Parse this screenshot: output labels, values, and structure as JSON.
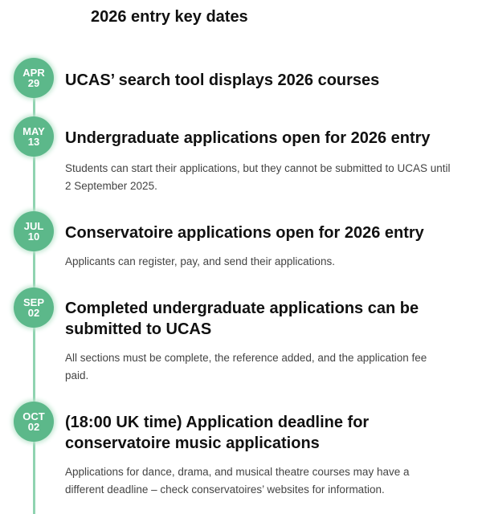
{
  "heading": "2026 entry key dates",
  "accent": "#5cb88a",
  "items": [
    {
      "month": "APR",
      "day": "29",
      "title": "UCAS’ search tool displays 2026 courses",
      "desc": ""
    },
    {
      "month": "MAY",
      "day": "13",
      "title": "Undergraduate applications open for 2026 entry",
      "desc": "Students can start their applications, but they cannot be submitted to UCAS until 2 September 2025."
    },
    {
      "month": "JUL",
      "day": "10",
      "title": "Conservatoire applications open for 2026 entry",
      "desc": "Applicants can register, pay, and send their applications."
    },
    {
      "month": "SEP",
      "day": "02",
      "title": "Completed undergraduate applications can be submitted to UCAS",
      "desc": "All sections must be complete, the reference added, and the application fee paid."
    },
    {
      "month": "OCT",
      "day": "02",
      "title": "(18:00 UK time) Application deadline for conservatoire music applications",
      "desc": "Applications for dance, drama, and musical theatre courses may have a different deadline – check conservatoires’ websites for information."
    }
  ]
}
